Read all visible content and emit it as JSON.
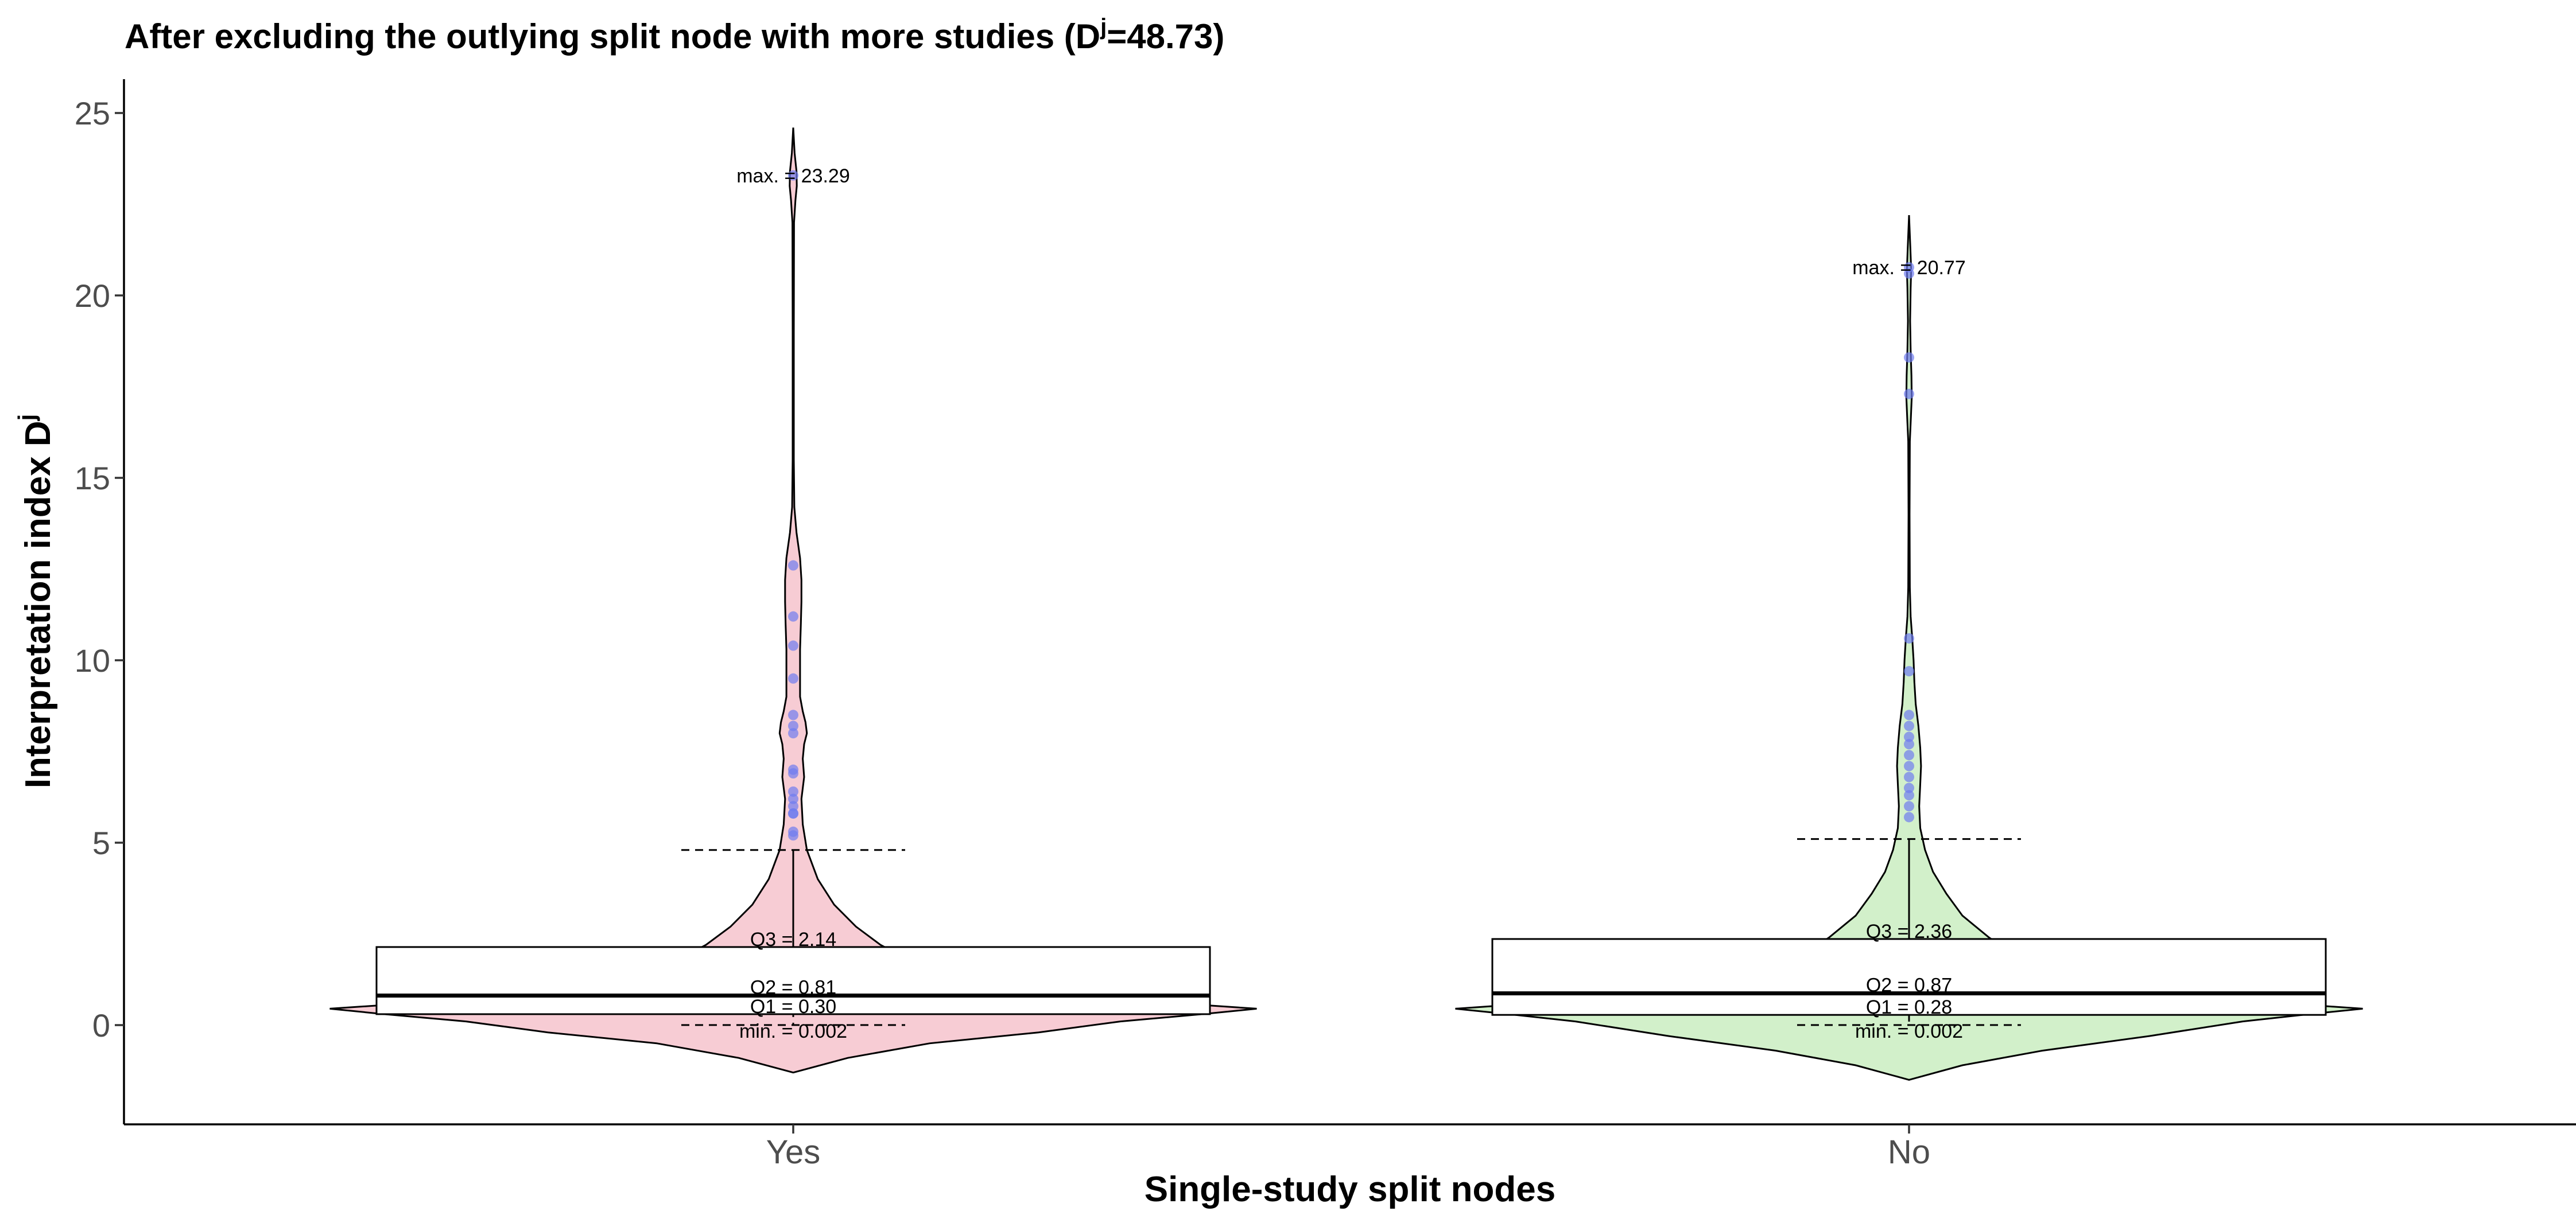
{
  "chart_data": {
    "type": "violin",
    "title": {
      "main": "After excluding the outlying split node with more studies (D",
      "sup": "j",
      "tail": "=48.73)"
    },
    "xlabel": "Single-study split nodes",
    "ylabel": {
      "main": "Interpretation index D",
      "sup": "j"
    },
    "ylim": [
      -2.7,
      25.9
    ],
    "yticks": [
      0,
      5,
      10,
      15,
      20,
      25
    ],
    "categories": [
      "Yes",
      "No"
    ],
    "colors": {
      "Yes": "#f7ccd4",
      "No": "#d2f0ca",
      "points": "#6f7cf0",
      "line": "#000000"
    },
    "groups": [
      {
        "category": "Yes",
        "whisker_max": 4.8,
        "stats": {
          "max": 23.29,
          "q3": 2.14,
          "q2": 0.81,
          "q1": 0.3,
          "min": 0.002
        },
        "labels": {
          "max": "max. = 23.29",
          "q3": "Q3 = 2.14",
          "q2": "Q2 = 0.81",
          "q1": "Q1 = 0.30",
          "min": "min. = 0.002"
        },
        "outliers": [
          23.29,
          12.6,
          11.2,
          10.4,
          9.5,
          8.5,
          8.2,
          8.0,
          7.0,
          6.9,
          6.4,
          6.2,
          6.0,
          5.8,
          5.8,
          5.3,
          5.2
        ],
        "density": [
          [
            -1.3,
            0
          ],
          [
            -0.9,
            2
          ],
          [
            -0.5,
            5
          ],
          [
            -0.2,
            9
          ],
          [
            0.1,
            12
          ],
          [
            0.3,
            15
          ],
          [
            0.45,
            17
          ],
          [
            0.6,
            14
          ],
          [
            0.9,
            8
          ],
          [
            1.3,
            5.5
          ],
          [
            1.8,
            4.2
          ],
          [
            2.2,
            3.2
          ],
          [
            2.7,
            2.3
          ],
          [
            3.3,
            1.5
          ],
          [
            4.0,
            0.9
          ],
          [
            4.8,
            0.5
          ],
          [
            5.5,
            0.35
          ],
          [
            6.2,
            0.3
          ],
          [
            6.8,
            0.4
          ],
          [
            7.3,
            0.35
          ],
          [
            7.7,
            0.4
          ],
          [
            8.0,
            0.5
          ],
          [
            8.3,
            0.45
          ],
          [
            8.6,
            0.35
          ],
          [
            9.0,
            0.25
          ],
          [
            9.5,
            0.25
          ],
          [
            10.3,
            0.25
          ],
          [
            11.0,
            0.28
          ],
          [
            11.6,
            0.3
          ],
          [
            12.2,
            0.3
          ],
          [
            12.8,
            0.25
          ],
          [
            13.5,
            0.12
          ],
          [
            14.2,
            0.04
          ],
          [
            15.5,
            0.02
          ],
          [
            19,
            0.02
          ],
          [
            22,
            0.03
          ],
          [
            22.6,
            0.08
          ],
          [
            23.0,
            0.13
          ],
          [
            23.4,
            0.12
          ],
          [
            23.9,
            0.05
          ],
          [
            24.6,
            0
          ]
        ]
      },
      {
        "category": "No",
        "whisker_max": 5.1,
        "stats": {
          "max": 20.77,
          "q3": 2.36,
          "q2": 0.87,
          "q1": 0.28,
          "min": 0.002
        },
        "labels": {
          "max": "max. = 20.77",
          "q3": "Q3 = 2.36",
          "q2": "Q2 = 0.87",
          "q1": "Q1 = 0.28",
          "min": "min. = 0.002"
        },
        "outliers": [
          20.77,
          20.6,
          18.3,
          17.3,
          10.6,
          9.7,
          8.5,
          8.2,
          7.9,
          7.7,
          7.4,
          7.1,
          6.8,
          6.5,
          6.3,
          6.0,
          5.7
        ],
        "density": [
          [
            -1.5,
            0
          ],
          [
            -1.1,
            2
          ],
          [
            -0.7,
            5
          ],
          [
            -0.3,
            9
          ],
          [
            0.1,
            12.5
          ],
          [
            0.3,
            15
          ],
          [
            0.45,
            17
          ],
          [
            0.6,
            14
          ],
          [
            0.9,
            8
          ],
          [
            1.3,
            5.5
          ],
          [
            1.8,
            4.2
          ],
          [
            2.4,
            3.0
          ],
          [
            3.0,
            2.0
          ],
          [
            3.6,
            1.4
          ],
          [
            4.2,
            0.9
          ],
          [
            4.8,
            0.6
          ],
          [
            5.4,
            0.42
          ],
          [
            6.0,
            0.38
          ],
          [
            6.6,
            0.42
          ],
          [
            7.1,
            0.45
          ],
          [
            7.6,
            0.42
          ],
          [
            8.2,
            0.35
          ],
          [
            8.8,
            0.25
          ],
          [
            9.4,
            0.2
          ],
          [
            10.0,
            0.17
          ],
          [
            10.6,
            0.12
          ],
          [
            11.2,
            0.06
          ],
          [
            12.0,
            0.03
          ],
          [
            14,
            0.02
          ],
          [
            16.0,
            0.03
          ],
          [
            16.5,
            0.06
          ],
          [
            17.2,
            0.1
          ],
          [
            17.8,
            0.09
          ],
          [
            18.5,
            0.06
          ],
          [
            19.3,
            0.04
          ],
          [
            20.2,
            0.06
          ],
          [
            20.7,
            0.08
          ],
          [
            21.3,
            0.05
          ],
          [
            22.2,
            0
          ]
        ]
      }
    ]
  }
}
